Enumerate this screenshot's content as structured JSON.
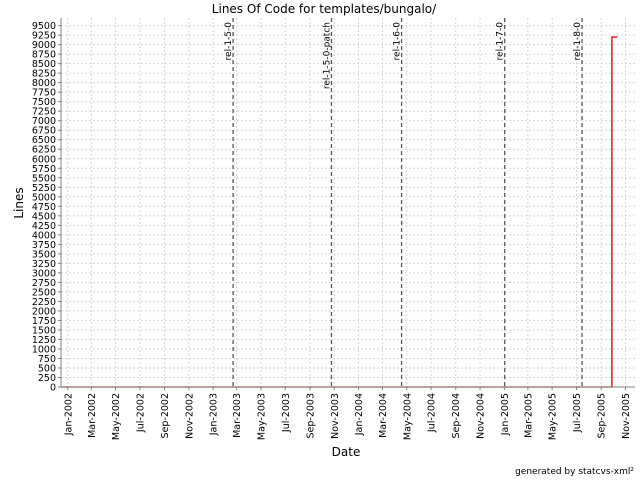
{
  "chart_data": {
    "type": "line",
    "title": "Lines Of Code for templates/bungalo/",
    "xlabel": "Date",
    "ylabel": "Lines",
    "x_range": [
      "2001-12-15",
      "2005-11-25"
    ],
    "ylim": [
      0,
      9700
    ],
    "grid": true,
    "y_ticks": [
      0,
      250,
      500,
      750,
      1000,
      1250,
      1500,
      1750,
      2000,
      2250,
      2500,
      2750,
      3000,
      3250,
      3500,
      3750,
      4000,
      4250,
      4500,
      4750,
      5000,
      5250,
      5500,
      5750,
      6000,
      6250,
      6500,
      6750,
      7000,
      7250,
      7500,
      7750,
      8000,
      8250,
      8500,
      8750,
      9000,
      9250,
      9500
    ],
    "x_ticks": [
      {
        "date": "2002-01-01",
        "label": "Jan-2002"
      },
      {
        "date": "2002-03-01",
        "label": "Mar-2002"
      },
      {
        "date": "2002-05-01",
        "label": "May-2002"
      },
      {
        "date": "2002-07-01",
        "label": "Jul-2002"
      },
      {
        "date": "2002-09-01",
        "label": "Sep-2002"
      },
      {
        "date": "2002-11-01",
        "label": "Nov-2002"
      },
      {
        "date": "2003-01-01",
        "label": "Jan-2003"
      },
      {
        "date": "2003-03-01",
        "label": "Mar-2003"
      },
      {
        "date": "2003-05-01",
        "label": "May-2003"
      },
      {
        "date": "2003-07-01",
        "label": "Jul-2003"
      },
      {
        "date": "2003-09-01",
        "label": "Sep-2003"
      },
      {
        "date": "2003-11-01",
        "label": "Nov-2003"
      },
      {
        "date": "2004-01-01",
        "label": "Jan-2004"
      },
      {
        "date": "2004-03-01",
        "label": "Mar-2004"
      },
      {
        "date": "2004-05-01",
        "label": "May-2004"
      },
      {
        "date": "2004-07-01",
        "label": "Jul-2004"
      },
      {
        "date": "2004-09-01",
        "label": "Sep-2004"
      },
      {
        "date": "2004-11-01",
        "label": "Nov-2004"
      },
      {
        "date": "2005-01-01",
        "label": "Jan-2005"
      },
      {
        "date": "2005-03-01",
        "label": "Mar-2005"
      },
      {
        "date": "2005-05-01",
        "label": "May-2005"
      },
      {
        "date": "2005-07-01",
        "label": "Jul-2005"
      },
      {
        "date": "2005-09-01",
        "label": "Sep-2005"
      },
      {
        "date": "2005-11-01",
        "label": "Nov-2005"
      }
    ],
    "releases": [
      {
        "name": "rel-1-5-0",
        "date": "2003-02-20"
      },
      {
        "name": "rel-1-5-0-patch",
        "date": "2003-10-25"
      },
      {
        "name": "rel-1-6-0",
        "date": "2004-04-18"
      },
      {
        "name": "rel-1-7-0",
        "date": "2005-01-02"
      },
      {
        "name": "rel-1-8-0",
        "date": "2005-07-15"
      }
    ],
    "series": [
      {
        "points": [
          {
            "date": "2005-09-28",
            "value": 0
          },
          {
            "date": "2005-09-28",
            "value": 9200
          },
          {
            "date": "2005-10-12",
            "value": 9200
          }
        ],
        "color": "#cc0000"
      }
    ]
  },
  "footer": "generated by statcvs-xml²"
}
